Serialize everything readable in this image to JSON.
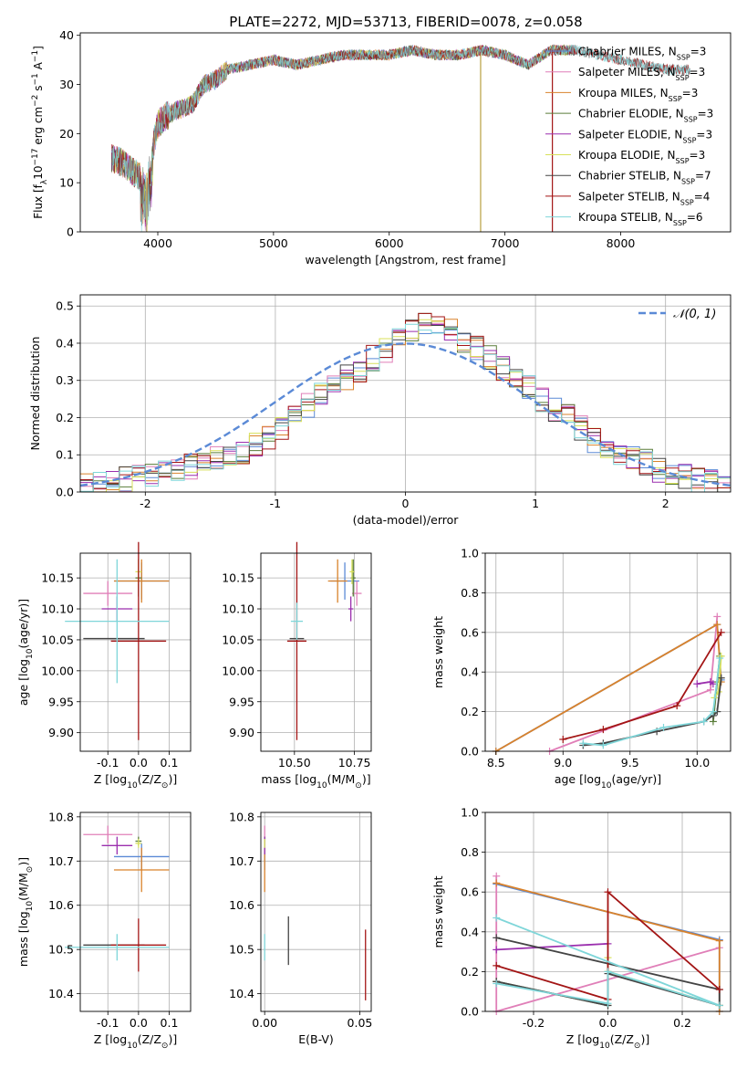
{
  "title": "PLATE=2272, MJD=53713, FIBERID=0078, z=0.058",
  "colors": {
    "Chabrier MILES": "#5b8ad6",
    "Salpeter MILES": "#e07fb8",
    "Kroupa MILES": "#d9822b",
    "Chabrier ELODIE": "#5a7d3a",
    "Salpeter ELODIE": "#9b2fae",
    "Kroupa ELODIE": "#d8e05a",
    "Chabrier STELIB": "#444444",
    "Salpeter STELIB": "#a31515",
    "Kroupa STELIB": "#7fd6d9",
    "normal": "#5b8ad6"
  },
  "legend": [
    "Chabrier MILES, N_SSP=3",
    "Salpeter MILES, N_SSP=3",
    "Kroupa MILES, N_SSP=3",
    "Chabrier ELODIE, N_SSP=3",
    "Salpeter ELODIE, N_SSP=3",
    "Kroupa ELODIE, N_SSP=3",
    "Chabrier STELIB, N_SSP=7",
    "Salpeter STELIB, N_SSP=4",
    "Kroupa STELIB, N_SSP=6"
  ],
  "chart_data": [
    {
      "id": "spectrum",
      "type": "line",
      "xlabel": "wavelength [Angstrom, rest frame]",
      "ylabel": "Flux [f_λ10^-17 erg cm^-2 s^-1 A^-1]",
      "xlim": [
        3330,
        8950
      ],
      "ylim": [
        0,
        40.5
      ],
      "xticks": [
        4000,
        5000,
        6000,
        7000,
        8000
      ],
      "yticks": [
        0,
        10,
        20,
        30,
        40
      ],
      "x": [
        3600,
        3700,
        3800,
        3900,
        4000,
        4100,
        4200,
        4300,
        4400,
        4500,
        4600,
        4800,
        5000,
        5200,
        5400,
        5600,
        5800,
        6000,
        6200,
        6400,
        6600,
        6800,
        7000,
        7200,
        7400,
        7600,
        7800,
        8000,
        8200,
        8400,
        8500
      ],
      "y": [
        15,
        14,
        12,
        10,
        22,
        24,
        25,
        26,
        30,
        31,
        33,
        34,
        35,
        34,
        35,
        36,
        36,
        36,
        37,
        36,
        36,
        37,
        36,
        34,
        37,
        37,
        36,
        35,
        34,
        33,
        33
      ],
      "legend_position": "upper right"
    },
    {
      "id": "residuals",
      "type": "histogram",
      "xlabel": "(data-model)/error",
      "ylabel": "Normed distribution",
      "xlim": [
        -2.5,
        2.5
      ],
      "ylim": [
        0,
        0.53
      ],
      "xticks": [
        -2,
        -1,
        0,
        1,
        2
      ],
      "yticks": [
        0,
        0.1,
        0.2,
        0.3,
        0.4,
        0.5
      ],
      "grid": true,
      "bin_edges_start": -2.5,
      "bin_width": 0.1,
      "density": [
        0.02,
        0.025,
        0.03,
        0.035,
        0.04,
        0.045,
        0.05,
        0.06,
        0.07,
        0.08,
        0.09,
        0.1,
        0.11,
        0.13,
        0.15,
        0.17,
        0.2,
        0.23,
        0.26,
        0.29,
        0.31,
        0.33,
        0.36,
        0.38,
        0.41,
        0.44,
        0.46,
        0.45,
        0.43,
        0.41,
        0.39,
        0.36,
        0.33,
        0.3,
        0.28,
        0.25,
        0.22,
        0.2,
        0.17,
        0.14,
        0.12,
        0.1,
        0.09,
        0.08,
        0.06,
        0.05,
        0.04,
        0.03,
        0.025,
        0.02
      ],
      "curve_label": "N(0,1)",
      "legend_position": "upper right"
    },
    {
      "id": "age-vs-z",
      "type": "errorbar",
      "xlabel": "Z [log10(Z/Z⊙)]",
      "ylabel": "age  [log10(age/yr)]",
      "xlim": [
        -0.19,
        0.17
      ],
      "ylim": [
        9.87,
        10.19
      ],
      "xticks": [
        -0.1,
        0.0,
        0.1
      ],
      "yticks": [
        9.9,
        9.95,
        10.0,
        10.05,
        10.1,
        10.15
      ],
      "points": [
        {
          "model": "Chabrier MILES",
          "x": 0.01,
          "y": 10.145,
          "xerr": 0.09,
          "yerr": 0.03
        },
        {
          "model": "Salpeter MILES",
          "x": -0.1,
          "y": 10.125,
          "xerr": 0.08,
          "yerr": 0.02
        },
        {
          "model": "Kroupa MILES",
          "x": 0.01,
          "y": 10.145,
          "xerr": 0.09,
          "yerr": 0.035
        },
        {
          "model": "Chabrier ELODIE",
          "x": 0.0,
          "y": 10.15,
          "xerr": 0.01,
          "yerr": 0.03
        },
        {
          "model": "Salpeter ELODIE",
          "x": -0.07,
          "y": 10.1,
          "xerr": 0.05,
          "yerr": 0.02
        },
        {
          "model": "Kroupa ELODIE",
          "x": 0.0,
          "y": 10.16,
          "xerr": 0.01,
          "yerr": 0.02
        },
        {
          "model": "Chabrier STELIB",
          "x": -0.08,
          "y": 10.052,
          "xerr": 0.1,
          "yerr": 0.0
        },
        {
          "model": "Salpeter STELIB",
          "x": 0.0,
          "y": 10.048,
          "xerr": 0.09,
          "yerr": 0.16
        },
        {
          "model": "Kroupa STELIB",
          "x": -0.07,
          "y": 10.08,
          "xerr": 0.17,
          "yerr": 0.1
        }
      ]
    },
    {
      "id": "age-vs-mass",
      "type": "errorbar",
      "xlabel": "mass [log10(M/M⊙)]",
      "ylabel": "",
      "xlim": [
        10.36,
        10.82
      ],
      "ylim": [
        9.87,
        10.19
      ],
      "xticks": [
        10.5,
        10.75
      ],
      "yticks": [
        9.9,
        9.95,
        10.0,
        10.05,
        10.1,
        10.15
      ],
      "points": [
        {
          "model": "Chabrier MILES",
          "x": 10.71,
          "y": 10.145,
          "xerr": 0.06,
          "yerr": 0.03
        },
        {
          "model": "Salpeter MILES",
          "x": 10.76,
          "y": 10.125,
          "xerr": 0.02,
          "yerr": 0.02
        },
        {
          "model": "Kroupa MILES",
          "x": 10.68,
          "y": 10.145,
          "xerr": 0.04,
          "yerr": 0.035
        },
        {
          "model": "Chabrier ELODIE",
          "x": 10.745,
          "y": 10.15,
          "xerr": 0.01,
          "yerr": 0.03
        },
        {
          "model": "Salpeter ELODIE",
          "x": 10.735,
          "y": 10.1,
          "xerr": 0.01,
          "yerr": 0.02
        },
        {
          "model": "Kroupa ELODIE",
          "x": 10.74,
          "y": 10.16,
          "xerr": 0.01,
          "yerr": 0.02
        },
        {
          "model": "Chabrier STELIB",
          "x": 10.51,
          "y": 10.052,
          "xerr": 0.03,
          "yerr": 0.0
        },
        {
          "model": "Salpeter STELIB",
          "x": 10.51,
          "y": 10.048,
          "xerr": 0.04,
          "yerr": 0.16
        },
        {
          "model": "Kroupa STELIB",
          "x": 10.51,
          "y": 10.08,
          "xerr": 0.025,
          "yerr": 0.03
        }
      ]
    },
    {
      "id": "mass-vs-z",
      "type": "errorbar",
      "xlabel": "Z [log10(Z/Z⊙)]",
      "ylabel": "mass [log10(M/M⊙)]",
      "xlim": [
        -0.19,
        0.17
      ],
      "ylim": [
        10.36,
        10.81
      ],
      "xticks": [
        -0.1,
        0.0,
        0.1
      ],
      "yticks": [
        10.4,
        10.5,
        10.6,
        10.7,
        10.8
      ],
      "points": [
        {
          "model": "Chabrier MILES",
          "x": 0.01,
          "y": 10.71,
          "xerr": 0.09,
          "yerr": 0.03
        },
        {
          "model": "Salpeter MILES",
          "x": -0.1,
          "y": 10.76,
          "xerr": 0.08,
          "yerr": 0.02
        },
        {
          "model": "Kroupa MILES",
          "x": 0.01,
          "y": 10.68,
          "xerr": 0.09,
          "yerr": 0.05
        },
        {
          "model": "Chabrier ELODIE",
          "x": 0.0,
          "y": 10.745,
          "xerr": 0.01,
          "yerr": 0.01
        },
        {
          "model": "Salpeter ELODIE",
          "x": -0.07,
          "y": 10.735,
          "xerr": 0.05,
          "yerr": 0.02
        },
        {
          "model": "Kroupa ELODIE",
          "x": 0.0,
          "y": 10.74,
          "xerr": 0.01,
          "yerr": 0.01
        },
        {
          "model": "Chabrier STELIB",
          "x": -0.08,
          "y": 10.51,
          "xerr": 0.1,
          "yerr": 0.0
        },
        {
          "model": "Salpeter STELIB",
          "x": 0.0,
          "y": 10.51,
          "xerr": 0.09,
          "yerr": 0.06
        },
        {
          "model": "Kroupa STELIB",
          "x": -0.07,
          "y": 10.505,
          "xerr": 0.17,
          "yerr": 0.03
        }
      ]
    },
    {
      "id": "mass-vs-ebv",
      "type": "errorbar",
      "xlabel": "E(B-V)",
      "ylabel": "",
      "xlim": [
        -0.002,
        0.056
      ],
      "ylim": [
        10.36,
        10.81
      ],
      "xticks": [
        0.0,
        0.05
      ],
      "yticks": [
        10.4,
        10.5,
        10.6,
        10.7,
        10.8
      ],
      "points": [
        {
          "model": "Chabrier MILES",
          "x": 0.0,
          "y": 10.71,
          "xerr": 0.0,
          "yerr": 0.03
        },
        {
          "model": "Salpeter MILES",
          "x": 0.0,
          "y": 10.76,
          "xerr": 0.0,
          "yerr": 0.02
        },
        {
          "model": "Kroupa MILES",
          "x": 0.0,
          "y": 10.68,
          "xerr": 0.0,
          "yerr": 0.05
        },
        {
          "model": "Chabrier ELODIE",
          "x": 0.0,
          "y": 10.745,
          "xerr": 0.0,
          "yerr": 0.01
        },
        {
          "model": "Salpeter ELODIE",
          "x": 0.0,
          "y": 10.735,
          "xerr": 0.0,
          "yerr": 0.02
        },
        {
          "model": "Kroupa ELODIE",
          "x": 0.0,
          "y": 10.74,
          "xerr": 0.0,
          "yerr": 0.01
        },
        {
          "model": "Chabrier STELIB",
          "x": 0.0125,
          "y": 10.52,
          "xerr": 0.0,
          "yerr": 0.055
        },
        {
          "model": "Salpeter STELIB",
          "x": 0.053,
          "y": 10.465,
          "xerr": 0.0,
          "yerr": 0.08
        },
        {
          "model": "Kroupa STELIB",
          "x": 0.0,
          "y": 10.505,
          "xerr": 0.0,
          "yerr": 0.03
        }
      ]
    },
    {
      "id": "weight-vs-age",
      "type": "line",
      "xlabel": "age  [log10(age/yr)]",
      "ylabel": "mass weight",
      "xlim": [
        8.42,
        10.25
      ],
      "ylim": [
        0,
        1.0
      ],
      "xticks": [
        8.5,
        9.0,
        9.5,
        10.0
      ],
      "yticks": [
        0.0,
        0.2,
        0.4,
        0.6,
        0.8,
        1.0
      ],
      "series": [
        {
          "model": "Chabrier MILES",
          "x": [
            8.5,
            10.15,
            10.18
          ],
          "y": [
            0.0,
            0.64,
            0.36
          ]
        },
        {
          "model": "Salpeter MILES",
          "x": [
            8.9,
            10.1,
            10.15
          ],
          "y": [
            0.0,
            0.31,
            0.68
          ]
        },
        {
          "model": "Kroupa MILES",
          "x": [
            8.5,
            10.15,
            10.18
          ],
          "y": [
            0.0,
            0.64,
            0.35
          ]
        },
        {
          "model": "Chabrier ELODIE",
          "x": [
            10.12,
            10.15,
            10.17
          ],
          "y": [
            0.15,
            0.35,
            0.48
          ]
        },
        {
          "model": "Salpeter ELODIE",
          "x": [
            10.0,
            10.1,
            10.12
          ],
          "y": [
            0.34,
            0.35,
            0.34
          ]
        },
        {
          "model": "Kroupa ELODIE",
          "x": [
            10.13,
            10.16,
            10.18
          ],
          "y": [
            0.27,
            0.3,
            0.48
          ]
        },
        {
          "model": "Chabrier STELIB",
          "x": [
            9.15,
            9.3,
            9.7,
            10.05,
            10.12,
            10.15,
            10.18
          ],
          "y": [
            0.03,
            0.04,
            0.1,
            0.15,
            0.18,
            0.2,
            0.37
          ]
        },
        {
          "model": "Salpeter STELIB",
          "x": [
            9.0,
            9.3,
            9.85,
            10.18
          ],
          "y": [
            0.06,
            0.11,
            0.23,
            0.6
          ]
        },
        {
          "model": "Kroupa STELIB",
          "x": [
            9.15,
            9.3,
            9.75,
            10.05,
            10.12,
            10.17
          ],
          "y": [
            0.04,
            0.03,
            0.12,
            0.15,
            0.2,
            0.47
          ]
        }
      ]
    },
    {
      "id": "weight-vs-z",
      "type": "line",
      "xlabel": "Z [log10(Z/Z⊙)]",
      "ylabel": "mass weight",
      "xlim": [
        -0.33,
        0.33
      ],
      "ylim": [
        0,
        1.0
      ],
      "xticks": [
        -0.2,
        0.0,
        0.2
      ],
      "yticks": [
        0.0,
        0.2,
        0.4,
        0.6,
        0.8,
        1.0
      ],
      "series": [
        {
          "model": "Chabrier MILES",
          "x": [
            -0.3,
            0.3,
            0.3
          ],
          "y": [
            0.64,
            0.36,
            0.0
          ]
        },
        {
          "model": "Salpeter MILES",
          "x": [
            -0.3,
            -0.3,
            0.3
          ],
          "y": [
            0.68,
            0.0,
            0.32
          ]
        },
        {
          "model": "Kroupa MILES",
          "x": [
            -0.3,
            0.3,
            0.3
          ],
          "y": [
            0.645,
            0.355,
            0.0
          ]
        },
        {
          "model": "Chabrier ELODIE",
          "x": [
            -0.3,
            0.0,
            0.0
          ],
          "y": [
            0.15,
            0.03,
            0.2
          ]
        },
        {
          "model": "Salpeter ELODIE",
          "x": [
            -0.3,
            0.0
          ],
          "y": [
            0.31,
            0.34
          ]
        },
        {
          "model": "Kroupa ELODIE",
          "x": [
            0.0,
            0.0,
            0.3
          ],
          "y": [
            0.27,
            0.2,
            0.03
          ]
        },
        {
          "model": "Chabrier STELIB",
          "x": [
            -0.3,
            0.0,
            0.0,
            0.3,
            0.3,
            -0.3
          ],
          "y": [
            0.15,
            0.03,
            0.19,
            0.03,
            0.11,
            0.37
          ]
        },
        {
          "model": "Salpeter STELIB",
          "x": [
            -0.3,
            0.0,
            0.0,
            0.3
          ],
          "y": [
            0.23,
            0.06,
            0.6,
            0.11
          ]
        },
        {
          "model": "Kroupa STELIB",
          "x": [
            -0.3,
            0.0,
            0.0,
            0.3,
            -0.3
          ],
          "y": [
            0.14,
            0.04,
            0.2,
            0.03,
            0.47
          ]
        }
      ]
    }
  ]
}
